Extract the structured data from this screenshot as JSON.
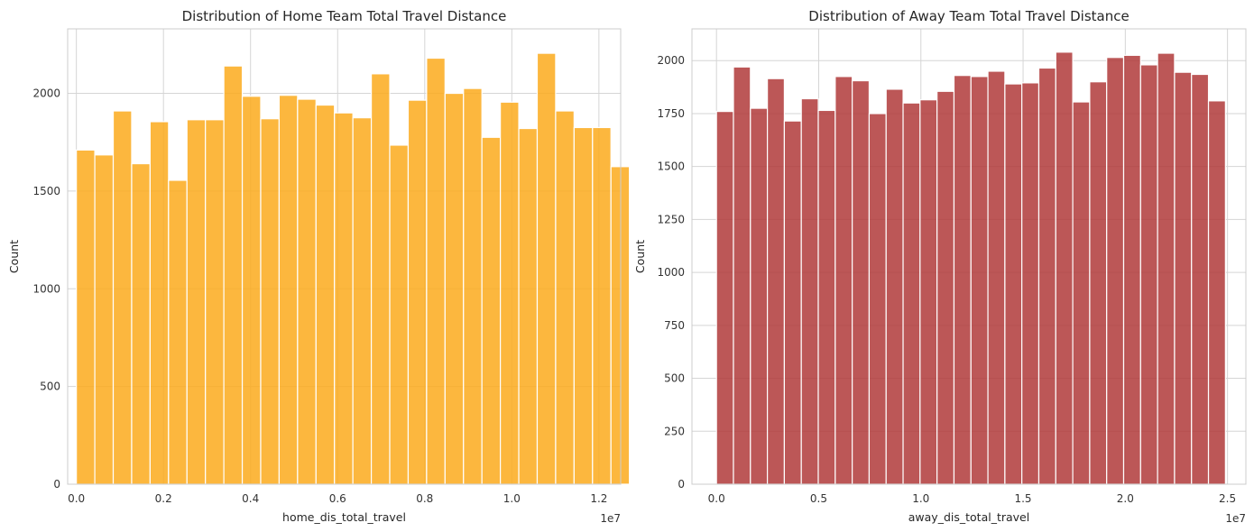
{
  "chart_data": [
    {
      "type": "bar",
      "subtype": "histogram",
      "title": "Distribution of Home Team Total Travel Distance",
      "xlabel": "home_dis_total_travel",
      "ylabel": "Count",
      "x_offset_label": "1e7",
      "x_scale": 10000000,
      "xlim": [
        -0.02,
        1.25
      ],
      "ylim": [
        0,
        2330
      ],
      "xticks": [
        0.0,
        0.2,
        0.4,
        0.6,
        0.8,
        1.0,
        1.2
      ],
      "xtick_labels": [
        "0.0",
        "0.2",
        "0.4",
        "0.6",
        "0.8",
        "1.0",
        "1.2"
      ],
      "yticks": [
        0,
        500,
        1000,
        1500,
        2000
      ],
      "ytick_labels": [
        "0",
        "500",
        "1000",
        "1500",
        "2000"
      ],
      "bin_start": 0.0,
      "bin_end": 1.27,
      "values": [
        1710,
        1685,
        1910,
        1640,
        1855,
        1555,
        1865,
        1865,
        2140,
        1985,
        1870,
        1990,
        1970,
        1940,
        1900,
        1875,
        2100,
        1735,
        1965,
        2180,
        2000,
        2025,
        1775,
        1955,
        1820,
        2205,
        1910,
        1825,
        1825,
        1625
      ],
      "color": "#FBAA1C",
      "grid": true
    },
    {
      "type": "bar",
      "subtype": "histogram",
      "title": "Distribution of Away Team Total Travel Distance",
      "xlabel": "away_dis_total_travel",
      "ylabel": "Count",
      "x_offset_label": "1e7",
      "x_scale": 10000000,
      "xlim": [
        -0.12,
        2.59
      ],
      "ylim": [
        0,
        2150
      ],
      "xticks": [
        0.0,
        0.5,
        1.0,
        1.5,
        2.0,
        2.5
      ],
      "xtick_labels": [
        "0.0",
        "0.5",
        "1.0",
        "1.5",
        "2.0",
        "2.5"
      ],
      "yticks": [
        0,
        250,
        500,
        750,
        1000,
        1250,
        1500,
        1750,
        2000
      ],
      "ytick_labels": [
        "0",
        "250",
        "500",
        "750",
        "1000",
        "1250",
        "1500",
        "1750",
        "2000"
      ],
      "bin_start": 0.0,
      "bin_end": 2.49,
      "values": [
        1760,
        1970,
        1775,
        1915,
        1715,
        1820,
        1765,
        1925,
        1905,
        1750,
        1865,
        1800,
        1815,
        1855,
        1930,
        1925,
        1950,
        1890,
        1895,
        1965,
        2040,
        1805,
        1900,
        2015,
        2025,
        1980,
        2035,
        1945,
        1935,
        1810
      ],
      "color": "#B03A3A",
      "grid": true
    }
  ]
}
